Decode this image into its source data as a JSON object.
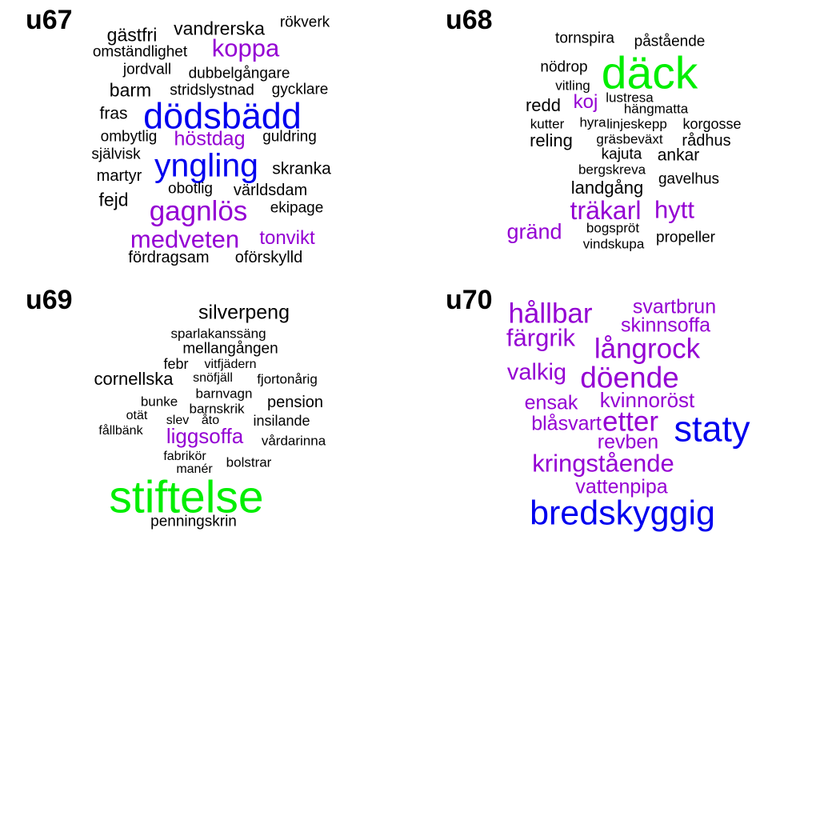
{
  "colors": {
    "black": "#000000",
    "purple": "#9400D3",
    "blue": "#0000EE",
    "green": "#00EE00"
  },
  "panels": [
    {
      "label": "u67",
      "words": [
        {
          "text": "gästfri",
          "c": "black"
        },
        {
          "text": "vandrerska",
          "c": "black"
        },
        {
          "text": "rökverk",
          "c": "black"
        },
        {
          "text": "koppa",
          "c": "purple"
        },
        {
          "text": "omständlighet",
          "c": "black"
        },
        {
          "text": "jordvall",
          "c": "black"
        },
        {
          "text": "dubbelgångare",
          "c": "black"
        },
        {
          "text": "barm",
          "c": "black"
        },
        {
          "text": "stridslystnad",
          "c": "black"
        },
        {
          "text": "gycklare",
          "c": "black"
        },
        {
          "text": "fras",
          "c": "black"
        },
        {
          "text": "dödsbädd",
          "c": "blue"
        },
        {
          "text": "ombytlig",
          "c": "black"
        },
        {
          "text": "höstdag",
          "c": "purple"
        },
        {
          "text": "guldring",
          "c": "black"
        },
        {
          "text": "självisk",
          "c": "black"
        },
        {
          "text": "yngling",
          "c": "blue"
        },
        {
          "text": "martyr",
          "c": "black"
        },
        {
          "text": "skranka",
          "c": "black"
        },
        {
          "text": "obotlig",
          "c": "black"
        },
        {
          "text": "världsdam",
          "c": "black"
        },
        {
          "text": "fejd",
          "c": "black"
        },
        {
          "text": "gagnlös",
          "c": "purple"
        },
        {
          "text": "ekipage",
          "c": "black"
        },
        {
          "text": "medveten",
          "c": "purple"
        },
        {
          "text": "tonvikt",
          "c": "purple"
        },
        {
          "text": "fördragsam",
          "c": "black"
        },
        {
          "text": "oförskylld",
          "c": "black"
        }
      ]
    },
    {
      "label": "u68",
      "words": [
        {
          "text": "tornspira",
          "c": "black"
        },
        {
          "text": "påstående",
          "c": "black"
        },
        {
          "text": "nödrop",
          "c": "black"
        },
        {
          "text": "däck",
          "c": "green"
        },
        {
          "text": "vitling",
          "c": "black"
        },
        {
          "text": "redd",
          "c": "black"
        },
        {
          "text": "koj",
          "c": "purple"
        },
        {
          "text": "lustresa",
          "c": "black"
        },
        {
          "text": "hängmatta",
          "c": "black"
        },
        {
          "text": "kutter",
          "c": "black"
        },
        {
          "text": "hyra",
          "c": "black"
        },
        {
          "text": "linjeskepp",
          "c": "black"
        },
        {
          "text": "korgosse",
          "c": "black"
        },
        {
          "text": "reling",
          "c": "black"
        },
        {
          "text": "gräsbeväxt",
          "c": "black"
        },
        {
          "text": "rådhus",
          "c": "black"
        },
        {
          "text": "kajuta",
          "c": "black"
        },
        {
          "text": "ankar",
          "c": "black"
        },
        {
          "text": "bergskreva",
          "c": "black"
        },
        {
          "text": "gavelhus",
          "c": "black"
        },
        {
          "text": "landgång",
          "c": "black"
        },
        {
          "text": "träkarl",
          "c": "purple"
        },
        {
          "text": "hytt",
          "c": "purple"
        },
        {
          "text": "gränd",
          "c": "purple"
        },
        {
          "text": "bogspröt",
          "c": "black"
        },
        {
          "text": "propeller",
          "c": "black"
        },
        {
          "text": "vindskupa",
          "c": "black"
        }
      ]
    },
    {
      "label": "u69",
      "words": [
        {
          "text": "silverpeng",
          "c": "black"
        },
        {
          "text": "sparlakanssäng",
          "c": "black"
        },
        {
          "text": "mellangången",
          "c": "black"
        },
        {
          "text": "febr",
          "c": "black"
        },
        {
          "text": "vitfjädern",
          "c": "black"
        },
        {
          "text": "cornellska",
          "c": "black"
        },
        {
          "text": "snöfjäll",
          "c": "black"
        },
        {
          "text": "fjortonårig",
          "c": "black"
        },
        {
          "text": "barnvagn",
          "c": "black"
        },
        {
          "text": "bunke",
          "c": "black"
        },
        {
          "text": "pension",
          "c": "black"
        },
        {
          "text": "barnskrik",
          "c": "black"
        },
        {
          "text": "otät",
          "c": "black"
        },
        {
          "text": "slev",
          "c": "black"
        },
        {
          "text": "åto",
          "c": "black"
        },
        {
          "text": "insilande",
          "c": "black"
        },
        {
          "text": "fållbänk",
          "c": "black"
        },
        {
          "text": "liggsoffa",
          "c": "purple"
        },
        {
          "text": "vårdarinna",
          "c": "black"
        },
        {
          "text": "fabrikör",
          "c": "black"
        },
        {
          "text": "bolstrar",
          "c": "black"
        },
        {
          "text": "manér",
          "c": "black"
        },
        {
          "text": "stiftelse",
          "c": "green"
        },
        {
          "text": "penningskrin",
          "c": "black"
        }
      ]
    },
    {
      "label": "u70",
      "words": [
        {
          "text": "svartbrun",
          "c": "purple"
        },
        {
          "text": "hållbar",
          "c": "purple"
        },
        {
          "text": "skinnsoffa",
          "c": "purple"
        },
        {
          "text": "färgrik",
          "c": "purple"
        },
        {
          "text": "långrock",
          "c": "purple"
        },
        {
          "text": "valkig",
          "c": "purple"
        },
        {
          "text": "döende",
          "c": "purple"
        },
        {
          "text": "ensak",
          "c": "purple"
        },
        {
          "text": "kvinnoröst",
          "c": "purple"
        },
        {
          "text": "blåsvart",
          "c": "purple"
        },
        {
          "text": "etter",
          "c": "purple"
        },
        {
          "text": "staty",
          "c": "blue"
        },
        {
          "text": "revben",
          "c": "purple"
        },
        {
          "text": "kringstående",
          "c": "purple"
        },
        {
          "text": "vattenpipa",
          "c": "purple"
        },
        {
          "text": "bredskyggig",
          "c": "blue"
        }
      ]
    }
  ]
}
